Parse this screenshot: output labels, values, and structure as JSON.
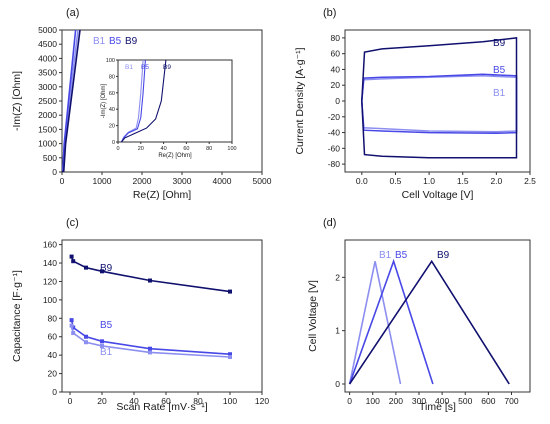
{
  "chart_data": [
    {
      "panel": "(a)",
      "type": "line",
      "xlabel": "Re(Z) [Ohm]",
      "ylabel": "-Im(Z) [Ohm]",
      "xlim": [
        0,
        5000
      ],
      "ylim": [
        0,
        5000
      ],
      "xticks": [
        0,
        1000,
        2000,
        3000,
        4000,
        5000
      ],
      "yticks": [
        0,
        500,
        1000,
        1500,
        2000,
        2500,
        3000,
        3500,
        4000,
        4500,
        5000
      ],
      "legend_text": [
        "B1",
        "B5",
        "B9"
      ],
      "series": [
        {
          "name": "B1",
          "color": "#8c8ff0",
          "points": [
            [
              0,
              0
            ],
            [
              20,
              20
            ],
            [
              60,
              1000
            ],
            [
              400,
              5000
            ]
          ]
        },
        {
          "name": "B5",
          "color": "#4848e6",
          "points": [
            [
              0,
              0
            ],
            [
              20,
              20
            ],
            [
              55,
              1000
            ],
            [
              340,
              5000
            ]
          ]
        },
        {
          "name": "B9",
          "color": "#10106e",
          "points": [
            [
              0,
              0
            ],
            [
              45,
              40
            ],
            [
              90,
              1000
            ],
            [
              450,
              5000
            ]
          ]
        }
      ],
      "inset": {
        "xlabel": "Re(Z) [Ohm]",
        "ylabel": "-Im(Z) [Ohm]",
        "xlim": [
          0,
          100
        ],
        "ylim": [
          0,
          100
        ],
        "xticks": [
          0,
          20,
          40,
          60,
          80,
          100
        ],
        "yticks": [
          0,
          20,
          40,
          60,
          80,
          100
        ],
        "legend_text": [
          "B1",
          "B5",
          "B9"
        ],
        "series": [
          {
            "name": "B1",
            "color": "#8c8ff0",
            "points": [
              [
                3,
                0
              ],
              [
                5,
                6
              ],
              [
                9,
                12
              ],
              [
                16,
                17
              ],
              [
                18,
                30
              ],
              [
                20,
                60
              ],
              [
                22,
                100
              ]
            ]
          },
          {
            "name": "B5",
            "color": "#4848e6",
            "points": [
              [
                3,
                0
              ],
              [
                5,
                5
              ],
              [
                9,
                11
              ],
              [
                17,
                16
              ],
              [
                20,
                30
              ],
              [
                22,
                60
              ],
              [
                24,
                100
              ]
            ]
          },
          {
            "name": "B9",
            "color": "#10106e",
            "points": [
              [
                3,
                0
              ],
              [
                6,
                5
              ],
              [
                14,
                10
              ],
              [
                25,
                17
              ],
              [
                33,
                28
              ],
              [
                38,
                50
              ],
              [
                42,
                100
              ]
            ]
          }
        ]
      }
    },
    {
      "panel": "(b)",
      "type": "line",
      "xlabel": "Cell Voltage [V]",
      "ylabel": "Current Density [A·g⁻¹]",
      "xlim": [
        -0.25,
        2.5
      ],
      "ylim": [
        -90,
        90
      ],
      "xticks": [
        0.0,
        0.5,
        1.0,
        1.5,
        2.0,
        2.5
      ],
      "yticks": [
        -80,
        -60,
        -40,
        -20,
        0,
        20,
        40,
        60,
        80
      ],
      "series": [
        {
          "name": "B1",
          "color": "#8c8ff0",
          "points": [
            [
              0.0,
              0
            ],
            [
              0.03,
              27
            ],
            [
              0.3,
              28
            ],
            [
              1.0,
              30
            ],
            [
              1.8,
              32
            ],
            [
              2.3,
              30
            ],
            [
              2.3,
              -38
            ],
            [
              2.0,
              -39
            ],
            [
              1.0,
              -38
            ],
            [
              0.3,
              -35
            ],
            [
              0.03,
              -34
            ],
            [
              0.0,
              0
            ]
          ]
        },
        {
          "name": "B5",
          "color": "#4848e6",
          "points": [
            [
              0.0,
              0
            ],
            [
              0.03,
              29
            ],
            [
              0.3,
              30
            ],
            [
              1.0,
              31
            ],
            [
              1.8,
              34
            ],
            [
              2.3,
              32
            ],
            [
              2.3,
              -40
            ],
            [
              2.0,
              -41
            ],
            [
              1.0,
              -40
            ],
            [
              0.3,
              -38
            ],
            [
              0.03,
              -37
            ],
            [
              0.0,
              0
            ]
          ]
        },
        {
          "name": "B9",
          "color": "#10106e",
          "points": [
            [
              0.0,
              0
            ],
            [
              0.04,
              62
            ],
            [
              0.3,
              66
            ],
            [
              1.0,
              70
            ],
            [
              1.8,
              75
            ],
            [
              2.3,
              80
            ],
            [
              2.3,
              -72
            ],
            [
              2.0,
              -72
            ],
            [
              1.0,
              -72
            ],
            [
              0.3,
              -70
            ],
            [
              0.04,
              -68
            ],
            [
              0.0,
              0
            ]
          ]
        }
      ]
    },
    {
      "panel": "(c)",
      "type": "line",
      "xlabel": "Scan Rate [mV·s⁻¹]",
      "ylabel": "Capacitance [F·g⁻¹]",
      "xlim": [
        -5,
        120
      ],
      "ylim": [
        0,
        165
      ],
      "xticks": [
        0,
        20,
        40,
        60,
        80,
        100,
        120
      ],
      "yticks": [
        0,
        20,
        40,
        60,
        80,
        100,
        120,
        140,
        160
      ],
      "series": [
        {
          "name": "B9",
          "color": "#10106e",
          "x": [
            1,
            2,
            10,
            20,
            50,
            100
          ],
          "y": [
            147,
            142,
            135,
            131,
            121,
            109
          ]
        },
        {
          "name": "B5",
          "color": "#4848e6",
          "x": [
            1,
            2,
            10,
            20,
            50,
            100
          ],
          "y": [
            78,
            70,
            60,
            55,
            47,
            41
          ]
        },
        {
          "name": "B1",
          "color": "#8c8ff0",
          "x": [
            1,
            2,
            10,
            20,
            50,
            100
          ],
          "y": [
            72,
            64,
            54,
            50,
            43,
            38
          ]
        }
      ]
    },
    {
      "panel": "(d)",
      "type": "line",
      "xlabel": "Time [s]",
      "ylabel": "Cell Voltage [V]",
      "xlim": [
        -20,
        780
      ],
      "ylim": [
        -0.15,
        2.7
      ],
      "xticks": [
        0,
        100,
        200,
        300,
        400,
        500,
        600,
        700
      ],
      "yticks": [
        0,
        1,
        2
      ],
      "series": [
        {
          "name": "B1",
          "color": "#8c8ff0",
          "x": [
            0,
            110,
            220
          ],
          "y": [
            0,
            2.3,
            0
          ]
        },
        {
          "name": "B5",
          "color": "#4848e6",
          "x": [
            0,
            190,
            360
          ],
          "y": [
            0,
            2.3,
            0
          ]
        },
        {
          "name": "B9",
          "color": "#10106e",
          "x": [
            0,
            355,
            690
          ],
          "y": [
            0,
            2.3,
            0
          ]
        }
      ]
    }
  ]
}
